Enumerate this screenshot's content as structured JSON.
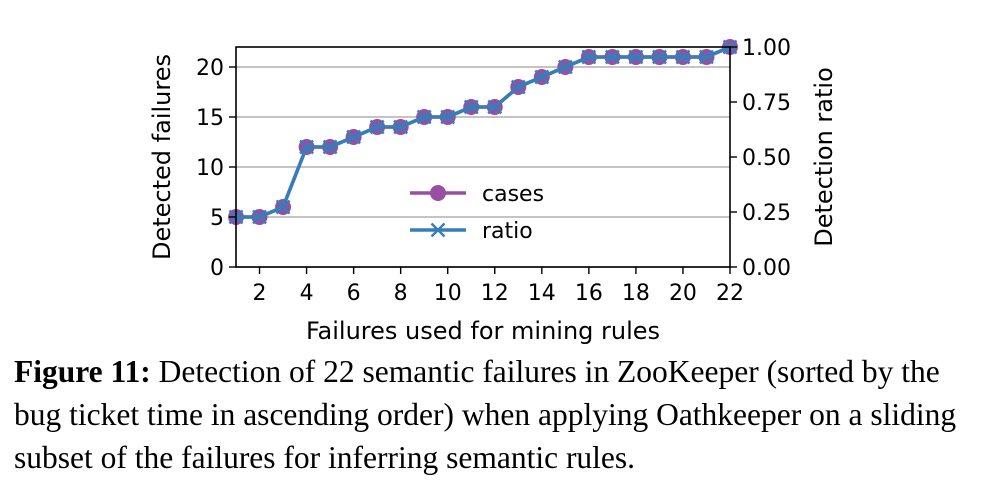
{
  "chart_data": {
    "type": "line",
    "x": [
      1,
      2,
      3,
      4,
      5,
      6,
      7,
      8,
      9,
      10,
      11,
      12,
      13,
      14,
      15,
      16,
      17,
      18,
      19,
      20,
      21,
      22
    ],
    "series": [
      {
        "name": "cases",
        "axis": "left",
        "color": "#984ea3",
        "marker": "circle",
        "values": [
          5,
          5,
          6,
          12,
          12,
          13,
          14,
          14,
          15,
          15,
          16,
          16,
          18,
          19,
          20,
          21,
          21,
          21,
          21,
          21,
          21,
          22
        ]
      },
      {
        "name": "ratio",
        "axis": "right",
        "color": "#377eb8",
        "marker": "x",
        "values": [
          0.2273,
          0.2273,
          0.2727,
          0.5455,
          0.5455,
          0.5909,
          0.6364,
          0.6364,
          0.6818,
          0.6818,
          0.7273,
          0.7273,
          0.8182,
          0.8636,
          0.9091,
          0.9545,
          0.9545,
          0.9545,
          0.9545,
          0.9545,
          0.9545,
          1.0
        ]
      }
    ],
    "xlabel": "Failures used for mining rules",
    "ylabel": "Detected failures",
    "y2label": "Detection ratio",
    "xlim": [
      1,
      22
    ],
    "ylim": [
      0,
      22
    ],
    "y2lim": [
      0,
      1
    ],
    "xticks": [
      "2",
      "4",
      "6",
      "8",
      "10",
      "12",
      "14",
      "16",
      "18",
      "20",
      "22"
    ],
    "yticks": [
      "0",
      "5",
      "10",
      "15",
      "20"
    ],
    "y2ticks": [
      "0.00",
      "0.25",
      "0.50",
      "0.75",
      "1.00"
    ],
    "grid": "horizontal",
    "legend_position": "center"
  },
  "caption": {
    "label": "Figure 11:",
    "text": " Detection of 22 semantic failures in ZooKeeper (sorted by the bug ticket time in ascending order) when applying Oathkeeper on a sliding subset of the failures for inferring semantic rules."
  }
}
